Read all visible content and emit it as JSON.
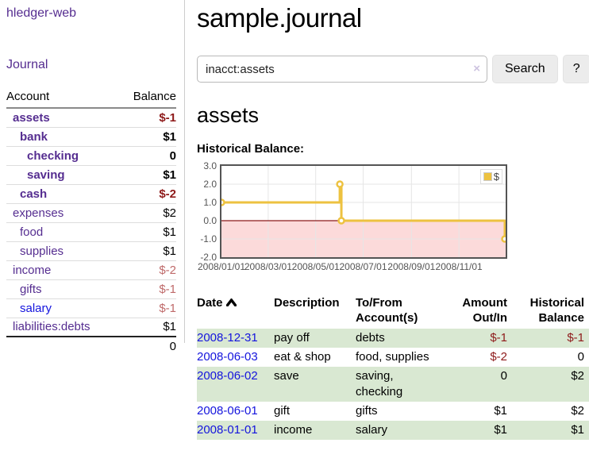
{
  "colors": {
    "link-purple": "#552d90",
    "link-blue": "#1414dd",
    "neg-strong": "#8e1a1a",
    "neg-soft": "#bf6a6a",
    "stripe-green": "#d9e8d2",
    "chart-line": "#edc240",
    "neg-region": "#fcdada",
    "zero-line": "#8b1a1a"
  },
  "sidebar": {
    "app_title": "hledger-web",
    "nav": {
      "journal": "Journal"
    },
    "accounts": {
      "headers": {
        "account": "Account",
        "balance": "Balance"
      },
      "rows": [
        {
          "name": "assets",
          "balance": "$-1",
          "indent": 1,
          "bold": true,
          "balance_class": "neg-strong",
          "name_class": ""
        },
        {
          "name": "bank",
          "balance": "$1",
          "indent": 2,
          "bold": true,
          "balance_class": "",
          "name_class": ""
        },
        {
          "name": "checking",
          "balance": "0",
          "indent": 3,
          "bold": true,
          "balance_class": "",
          "name_class": ""
        },
        {
          "name": "saving",
          "balance": "$1",
          "indent": 3,
          "bold": true,
          "balance_class": "",
          "name_class": ""
        },
        {
          "name": "cash",
          "balance": "$-2",
          "indent": 2,
          "bold": true,
          "balance_class": "neg-strong",
          "name_class": ""
        },
        {
          "name": "expenses",
          "balance": "$2",
          "indent": 1,
          "bold": false,
          "balance_class": "",
          "name_class": ""
        },
        {
          "name": "food",
          "balance": "$1",
          "indent": 2,
          "bold": false,
          "balance_class": "",
          "name_class": ""
        },
        {
          "name": "supplies",
          "balance": "$1",
          "indent": 2,
          "bold": false,
          "balance_class": "",
          "name_class": ""
        },
        {
          "name": "income",
          "balance": "$-2",
          "indent": 1,
          "bold": false,
          "balance_class": "neg-soft",
          "name_class": ""
        },
        {
          "name": "gifts",
          "balance": "$-1",
          "indent": 2,
          "bold": false,
          "balance_class": "neg-soft",
          "name_class": ""
        },
        {
          "name": "salary",
          "balance": "$-1",
          "indent": 2,
          "bold": false,
          "balance_class": "neg-soft",
          "name_class": "blue"
        },
        {
          "name": "liabilities:debts",
          "balance": "$1",
          "indent": 1,
          "bold": false,
          "balance_class": "",
          "name_class": ""
        }
      ],
      "total": "0"
    }
  },
  "main": {
    "title": "sample.journal",
    "search": {
      "value": "inacct:assets",
      "clear_icon": "×",
      "button": "Search",
      "help_button": "?"
    },
    "account_heading": "assets",
    "chart_heading": "Historical Balance:"
  },
  "register": {
    "headers": {
      "date": "Date",
      "description": "Description",
      "account": "To/From Account(s)",
      "amount": "Amount Out/In",
      "balance": "Historical Balance"
    },
    "rows": [
      {
        "date": "2008-12-31",
        "description": "pay off",
        "tofrom": "debts",
        "amount": "$-1",
        "balance": "$-1",
        "amount_class": "neg-strong",
        "balance_class": "neg-strong"
      },
      {
        "date": "2008-06-03",
        "description": "eat & shop",
        "tofrom": "food, supplies",
        "amount": "$-2",
        "balance": "0",
        "amount_class": "neg-strong",
        "balance_class": ""
      },
      {
        "date": "2008-06-02",
        "description": "save",
        "tofrom": "saving, checking",
        "amount": "0",
        "balance": "$2",
        "amount_class": "",
        "balance_class": ""
      },
      {
        "date": "2008-06-01",
        "description": "gift",
        "tofrom": "gifts",
        "amount": "$1",
        "balance": "$2",
        "amount_class": "",
        "balance_class": ""
      },
      {
        "date": "2008-01-01",
        "description": "income",
        "tofrom": "salary",
        "amount": "$1",
        "balance": "$1",
        "amount_class": "",
        "balance_class": ""
      }
    ]
  },
  "chart_data": {
    "type": "line",
    "step": true,
    "title": "Historical Balance:",
    "legend": "$",
    "legend_position": "top-right",
    "grid": true,
    "xlim": [
      "2008-01-01",
      "2008-12-31"
    ],
    "ylim": [
      -2,
      3
    ],
    "y_ticks": [
      "3.0",
      "2.0",
      "1.0",
      "0.0",
      "-1.0",
      "-2.0"
    ],
    "y_tick_values": [
      3,
      2,
      1,
      0,
      -1,
      -2
    ],
    "x_ticks": [
      "2008/01/01",
      "2008/03/01",
      "2008/05/01",
      "2008/07/01",
      "2008/09/01",
      "2008/11/01"
    ],
    "x_tick_dates": [
      "2008-01-01",
      "2008-03-01",
      "2008-05-01",
      "2008-07-01",
      "2008-09-01",
      "2008-11-01"
    ],
    "series": [
      {
        "name": "$",
        "points": [
          {
            "date": "2008-01-01",
            "value": 1
          },
          {
            "date": "2008-06-01",
            "value": 2
          },
          {
            "date": "2008-06-03",
            "value": 0
          },
          {
            "date": "2008-12-31",
            "value": -1
          }
        ]
      }
    ]
  }
}
